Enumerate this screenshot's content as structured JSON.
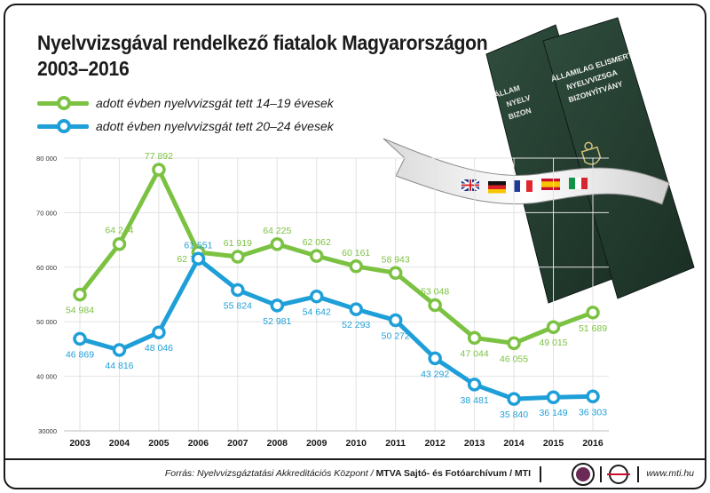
{
  "chart_data": {
    "type": "line",
    "title": "Nyelvvizsgával rendelkező fiatalok Magyarországon",
    "subtitle": "2003–2016",
    "x": [
      2003,
      2004,
      2005,
      2006,
      2007,
      2008,
      2009,
      2010,
      2011,
      2012,
      2013,
      2014,
      2015,
      2016
    ],
    "x_tick_labels": [
      "2003",
      "2004",
      "2005",
      "2006",
      "2007",
      "2008",
      "2009",
      "2010",
      "2011",
      "2012",
      "2013",
      "2014",
      "2015",
      "2016"
    ],
    "ylim": [
      30000,
      80000
    ],
    "y_ticks": [
      30000,
      40000,
      50000,
      60000,
      70000,
      80000
    ],
    "y_tick_labels": [
      "30000",
      "40 000",
      "50 000",
      "60 000",
      "70 000",
      "80 000"
    ],
    "grid": true,
    "legend_position": "top-left",
    "series": [
      {
        "name": "adott évben nyelvvizsgát tett 14–19 évesek",
        "color": "#7cc242",
        "values": [
          54984,
          64244,
          77892,
          62743,
          61919,
          64225,
          62062,
          60161,
          58943,
          53048,
          47044,
          46055,
          49015,
          51689
        ],
        "labels": [
          "54 984",
          "64 244",
          "77 892",
          "62 743",
          "61 919",
          "64 225",
          "62 062",
          "60 161",
          "58 943",
          "53 048",
          "47 044",
          "46 055",
          "49 015",
          "51 689"
        ]
      },
      {
        "name": "adott évben nyelvvizsgát tett 20–24 évesek",
        "color": "#1e9fd8",
        "values": [
          46869,
          44816,
          48046,
          61551,
          55824,
          52981,
          54642,
          52293,
          50272,
          43292,
          38481,
          35840,
          36149,
          36303
        ],
        "labels": [
          "46 869",
          "44 816",
          "48 046",
          "61 551",
          "55 824",
          "52 981",
          "54 642",
          "52 293",
          "50 272",
          "43 292",
          "38 481",
          "35 840",
          "36 149",
          "36 303"
        ]
      }
    ]
  },
  "book": {
    "line1": "ÁLLAMILAG ELISMERT",
    "line2": "NYELVVIZSGA",
    "line3": "BIZONYÍTVÁNY",
    "partial1": "ÁLLAM",
    "partial2": "NYELV",
    "partial3": "BIZON"
  },
  "footer": {
    "source_italic": "Forrás: Nyelvvizsgáztatási Akkreditációs Központ /",
    "source_bold": "MTVA Sajtó- és Fotóarchívum / MTI",
    "mtva_icon": "mtva-logo",
    "mti_icon": "mti-logo",
    "website": "www.mti.hu"
  },
  "colors": {
    "green": "#7cc242",
    "blue": "#1e9fd8",
    "grid": "#e2e2e2",
    "book": "#243d30"
  }
}
